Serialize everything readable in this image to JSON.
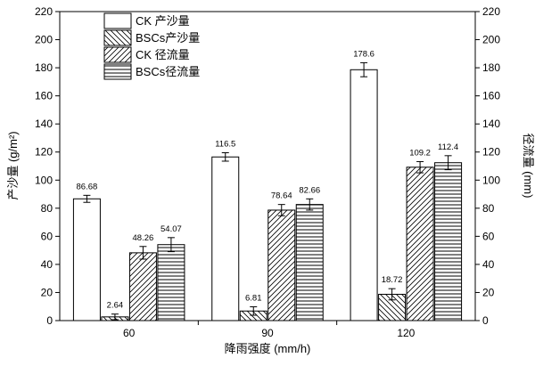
{
  "chart_data": {
    "type": "bar",
    "categories": [
      "60",
      "90",
      "120"
    ],
    "xlabel": "降雨强度 (mm/h)",
    "ylabel_left": "产沙量 (g/m²)",
    "ylabel_right": "径流量 (mm)",
    "ylim": [
      0,
      220
    ],
    "y_ticks": [
      "0",
      "20",
      "40",
      "60",
      "80",
      "100",
      "120",
      "140",
      "160",
      "180",
      "200",
      "220"
    ],
    "legend_position": "top-left",
    "series": [
      {
        "name": "CK 产沙量",
        "pattern": "blank",
        "values": [
          86.68,
          116.5,
          178.6
        ],
        "labels": [
          "86.68",
          "116.5",
          "178.6"
        ],
        "errors": [
          2.5,
          3,
          5
        ]
      },
      {
        "name": "BSCs产沙量",
        "pattern": "diagonal-down",
        "values": [
          2.64,
          6.81,
          18.72
        ],
        "labels": [
          "2.64",
          "6.81",
          "18.72"
        ],
        "errors": [
          2,
          3,
          4
        ]
      },
      {
        "name": "CK 径流量",
        "pattern": "diagonal-up",
        "values": [
          48.26,
          78.64,
          109.2
        ],
        "labels": [
          "48.26",
          "78.64",
          "109.2"
        ],
        "errors": [
          4.5,
          4,
          4
        ]
      },
      {
        "name": "BSCs径流量",
        "pattern": "horizontal",
        "values": [
          54.07,
          82.66,
          112.4
        ],
        "labels": [
          "54.07",
          "82.66",
          "112.4"
        ],
        "errors": [
          5,
          4,
          5
        ]
      }
    ]
  }
}
